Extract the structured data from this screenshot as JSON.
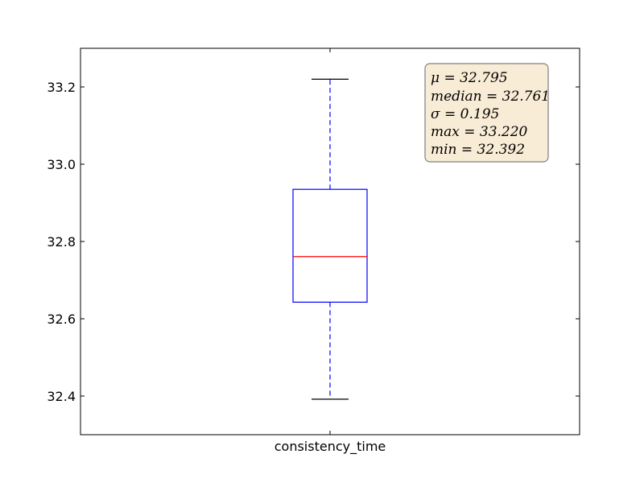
{
  "chart_data": {
    "type": "box",
    "categories": [
      "consistency_time"
    ],
    "ylim": [
      32.3,
      33.3
    ],
    "yticks": [
      {
        "value": 32.4,
        "label": "32.4"
      },
      {
        "value": 32.6,
        "label": "32.6"
      },
      {
        "value": 32.8,
        "label": "32.8"
      },
      {
        "value": 33.0,
        "label": "33.0"
      },
      {
        "value": 33.2,
        "label": "33.2"
      }
    ],
    "box": {
      "whisker_low": 32.392,
      "q1": 32.643,
      "median": 32.761,
      "q3": 32.935,
      "whisker_high": 33.22
    },
    "stats_box": [
      "μ = 32.795",
      "median = 32.761",
      "σ = 0.195",
      "max = 33.220",
      "min = 32.392"
    ],
    "colors": {
      "box": "#0000ff",
      "median": "#ff0000",
      "cap": "#000000",
      "stats_bg": "#f9ecd6",
      "stats_border": "#7f7f7f"
    }
  }
}
